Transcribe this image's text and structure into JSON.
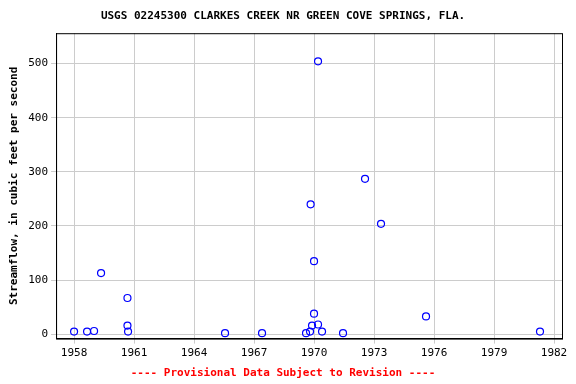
{
  "chart_data": {
    "type": "scatter",
    "title": "USGS 02245300 CLARKES CREEK NR GREEN COVE SPRINGS, FLA.",
    "annotations": [
      "---- Provisional Data Subject to Revision ----"
    ],
    "y_label": "Streamflow, in cubic feet per second",
    "x": [
      1958.0,
      1958.65,
      1959.0,
      1959.35,
      1960.67,
      1960.67,
      1960.7,
      1965.55,
      1967.4,
      1969.6,
      1969.8,
      1969.83,
      1969.9,
      1970.0,
      1970.0,
      1970.2,
      1970.2,
      1970.4,
      1971.45,
      1972.55,
      1973.35,
      1975.6,
      1981.3
    ],
    "values": [
      5,
      5,
      6,
      113,
      67,
      16,
      5,
      2,
      2,
      2,
      5,
      240,
      16,
      38,
      135,
      504,
      18,
      5,
      2,
      287,
      204,
      33,
      5
    ],
    "color": "#0000ff",
    "marker": "open_circle",
    "xlim": [
      1957.1,
      1982.4
    ],
    "xticks": [
      1958,
      1961,
      1964,
      1967,
      1970,
      1973,
      1976,
      1979,
      1982
    ],
    "ylim": [
      -8,
      556
    ],
    "yticks": [
      0,
      100,
      200,
      300,
      400,
      500
    ],
    "grid": true
  }
}
